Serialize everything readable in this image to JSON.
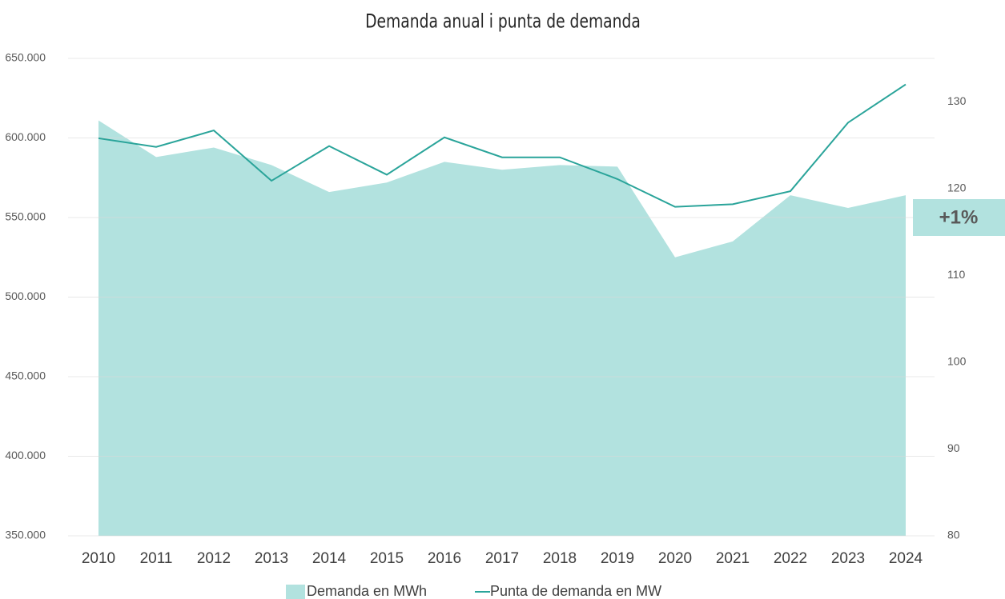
{
  "chart_data": {
    "type": "combo",
    "title": "Demanda anual i punta de demanda",
    "categories": [
      "2010",
      "2011",
      "2012",
      "2013",
      "2014",
      "2015",
      "2016",
      "2017",
      "2018",
      "2019",
      "2020",
      "2021",
      "2022",
      "2023",
      "2024"
    ],
    "series": [
      {
        "name": "Demanda en MWh",
        "type": "area",
        "color": "#b2e2df",
        "axis": "y",
        "values": [
          611000,
          588000,
          594000,
          583000,
          566000,
          572000,
          585000,
          580000,
          583000,
          582000,
          525000,
          535000,
          564000,
          556000,
          564000
        ]
      },
      {
        "name": "Punta de demanda en MW",
        "type": "line",
        "color": "#2aa49a",
        "axis": "y2",
        "values": [
          125.8,
          124.8,
          126.7,
          120.9,
          124.9,
          121.6,
          125.9,
          123.6,
          123.6,
          121.1,
          117.9,
          118.2,
          119.7,
          127.6,
          132.0
        ]
      }
    ],
    "ylim": [
      350000,
      650000
    ],
    "yticks": [
      {
        "value": 350000,
        "label": "350.000"
      },
      {
        "value": 400000,
        "label": "400.000"
      },
      {
        "value": 450000,
        "label": "450.000"
      },
      {
        "value": 500000,
        "label": "500.000"
      },
      {
        "value": 550000,
        "label": "550.000"
      },
      {
        "value": 600000,
        "label": "600.000"
      },
      {
        "value": 650000,
        "label": "650.000"
      }
    ],
    "y2lim": [
      80,
      135
    ],
    "y2ticks": [
      80,
      90,
      100,
      110,
      120,
      130
    ],
    "grid": true,
    "annotation": "+1%"
  }
}
